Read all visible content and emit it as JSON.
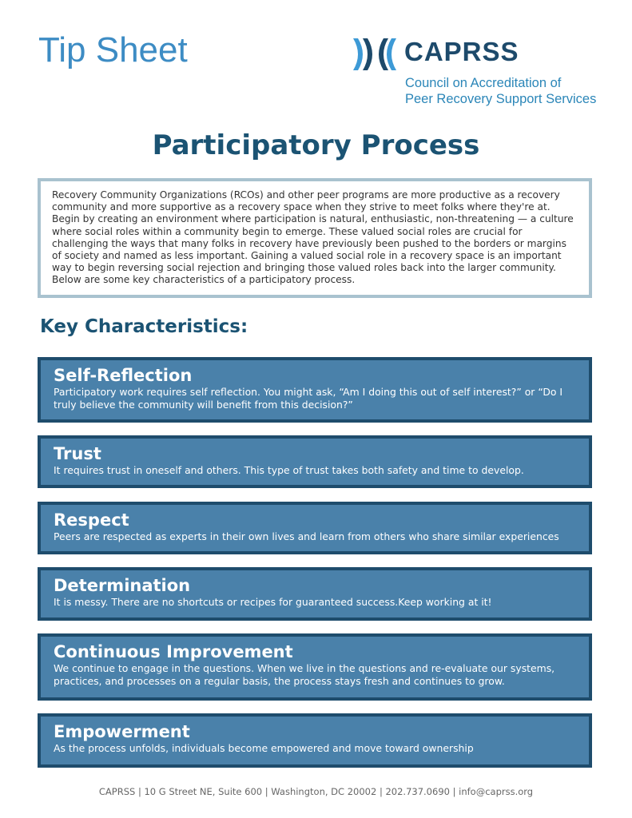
{
  "header": {
    "tip_label": "Tip Sheet",
    "logo": {
      "name": "CAPRSS",
      "subtitle_line1": "Council on Accreditation of",
      "subtitle_line2": "Peer Recovery Support Services"
    }
  },
  "title": "Participatory Process",
  "intro": "Recovery Community Organizations (RCOs) and other peer programs are more productive as a recovery community and more supportive as a recovery space when they strive to meet folks where they're at. Begin by creating an environment where participation is natural, enthusiastic, non-threatening — a culture where social roles within a community begin to emerge. These valued social roles are crucial for challenging the ways that many folks in recovery have previously been pushed to the borders or margins of society and named as less important. Gaining a valued social role in a recovery space is an important way to begin reversing social rejection and bringing those valued roles back into the larger community. Below are some key characteristics of a participatory process.",
  "section_heading": "Key Characteristics:",
  "characteristics": [
    {
      "title": "Self-Reflection",
      "text": "Participatory work requires self reflection. You might ask, “Am I doing this out of self interest?” or “Do I truly believe the community will benefit from this decision?”"
    },
    {
      "title": "Trust",
      "text": "It requires trust in oneself and others. This type of trust takes both safety and time to develop."
    },
    {
      "title": "Respect",
      "text": "Peers are respected as experts in their own lives and learn from others who share similar experiences"
    },
    {
      "title": "Determination",
      "text": "It is messy. There are no shortcuts or recipes for guaranteed success.Keep working at it!"
    },
    {
      "title": "Continuous Improvement",
      "text": "We continue to engage in the questions. When we live in the questions and re-evaluate our systems, practices, and processes on a regular basis, the process stays fresh and continues to grow."
    },
    {
      "title": "Empowerment",
      "text": "As the process unfolds, individuals become empowered and move toward ownership"
    }
  ],
  "footer": "CAPRSS | 10 G Street NE, Suite 600 | Washington, DC 20002 | 202.737.0690 | info@caprss.org",
  "colors": {
    "accent": "#3d8cc4",
    "navy": "#1b5373",
    "card_fill": "#4a81aa",
    "card_border": "#1e4c6c"
  }
}
